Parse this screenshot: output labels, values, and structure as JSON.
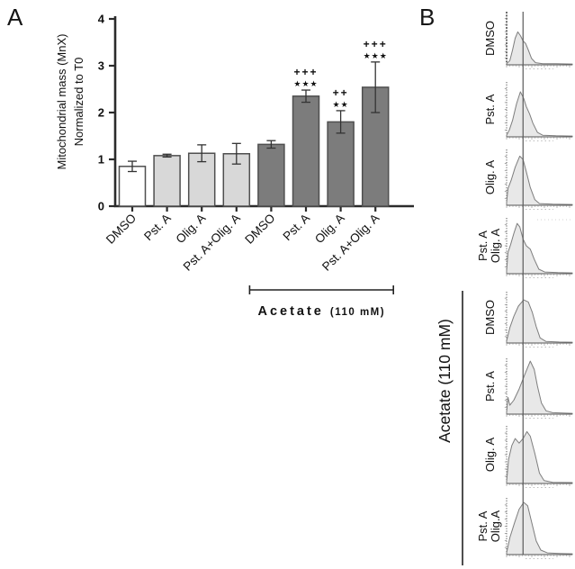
{
  "figure": {
    "panel_a_label": "A",
    "panel_b_label": "B"
  },
  "chart_data": [
    {
      "type": "bar",
      "panel": "A",
      "ylabel": [
        "Mitochondrial mass (MnX)",
        "Normalized to T0"
      ],
      "ylim": [
        0,
        4
      ],
      "yticks": [
        0,
        1,
        2,
        3,
        4
      ],
      "grid": false,
      "legend": false,
      "categories": [
        "DMSO",
        "Pst. A",
        "Olig. A",
        "Pst. A+Olig. A",
        "DMSO",
        "Pst. A",
        "Olig. A",
        "Pst. A+Olig. A"
      ],
      "values": [
        0.85,
        1.08,
        1.13,
        1.12,
        1.32,
        2.35,
        1.8,
        2.54
      ],
      "errors": [
        0.11,
        0.03,
        0.18,
        0.22,
        0.08,
        0.13,
        0.24,
        0.54
      ],
      "bar_colors": [
        "#ffffff",
        "#d8d8d8",
        "#d8d8d8",
        "#d8d8d8",
        "#7c7c7c",
        "#7c7c7c",
        "#7c7c7c",
        "#7c7c7c"
      ],
      "bar_border_color": "#4f4f4f",
      "significance_stars": [
        "",
        "",
        "",
        "",
        "",
        "***",
        "**",
        "***"
      ],
      "significance_plus": [
        "",
        "",
        "",
        "",
        "",
        "+++",
        "++",
        "+++"
      ],
      "group_bracket": {
        "label_main": "Acetate",
        "label_sub": "(110 mM)",
        "from_category_index": 4,
        "to_category_index": 7
      }
    },
    {
      "type": "area",
      "panel": "B",
      "subtype": "flow-cytometry-histograms",
      "fill_color": "#e6e6e6",
      "line_color": "#7e7e7e",
      "ref_line_x_fraction": 0.25,
      "histograms": [
        {
          "label_lines": [
            "DMSO"
          ],
          "points": [
            [
              0,
              0.02
            ],
            [
              0.05,
              0.08
            ],
            [
              0.09,
              0.28
            ],
            [
              0.13,
              0.5
            ],
            [
              0.17,
              0.62
            ],
            [
              0.21,
              0.55
            ],
            [
              0.25,
              0.45
            ],
            [
              0.29,
              0.4
            ],
            [
              0.33,
              0.28
            ],
            [
              0.38,
              0.12
            ],
            [
              0.44,
              0.04
            ],
            [
              0.55,
              0.02
            ],
            [
              0.75,
              0.02
            ],
            [
              1,
              0.015
            ]
          ]
        },
        {
          "label_lines": [
            "Pst. A"
          ],
          "points": [
            [
              0,
              0.03
            ],
            [
              0.04,
              0.12
            ],
            [
              0.09,
              0.3
            ],
            [
              0.15,
              0.6
            ],
            [
              0.21,
              0.82
            ],
            [
              0.26,
              0.7
            ],
            [
              0.3,
              0.55
            ],
            [
              0.35,
              0.42
            ],
            [
              0.4,
              0.25
            ],
            [
              0.47,
              0.08
            ],
            [
              0.55,
              0.03
            ],
            [
              0.75,
              0.02
            ],
            [
              1,
              0.015
            ]
          ]
        },
        {
          "label_lines": [
            "Olig. A"
          ],
          "points": [
            [
              0,
              0.05
            ],
            [
              0.02,
              0.3
            ],
            [
              0.07,
              0.45
            ],
            [
              0.13,
              0.68
            ],
            [
              0.2,
              0.88
            ],
            [
              0.25,
              0.82
            ],
            [
              0.3,
              0.6
            ],
            [
              0.36,
              0.32
            ],
            [
              0.43,
              0.1
            ],
            [
              0.5,
              0.03
            ],
            [
              0.7,
              0.02
            ],
            [
              1,
              0.015
            ]
          ]
        },
        {
          "label_lines": [
            "Pst. A",
            "Olig. A"
          ],
          "points": [
            [
              0,
              0.05
            ],
            [
              0.02,
              0.38
            ],
            [
              0.06,
              0.52
            ],
            [
              0.11,
              0.72
            ],
            [
              0.16,
              0.9
            ],
            [
              0.2,
              0.84
            ],
            [
              0.25,
              0.62
            ],
            [
              0.3,
              0.5
            ],
            [
              0.36,
              0.44
            ],
            [
              0.42,
              0.26
            ],
            [
              0.49,
              0.08
            ],
            [
              0.58,
              0.03
            ],
            [
              0.78,
              0.02
            ],
            [
              1,
              0.015
            ]
          ]
        },
        {
          "label_lines": [
            "DMSO"
          ],
          "points": [
            [
              0,
              0.04
            ],
            [
              0.05,
              0.3
            ],
            [
              0.11,
              0.52
            ],
            [
              0.18,
              0.72
            ],
            [
              0.26,
              0.84
            ],
            [
              0.33,
              0.8
            ],
            [
              0.39,
              0.6
            ],
            [
              0.45,
              0.32
            ],
            [
              0.51,
              0.1
            ],
            [
              0.6,
              0.03
            ],
            [
              0.8,
              0.02
            ],
            [
              1,
              0.015
            ]
          ]
        },
        {
          "label_lines": [
            "Pst. A"
          ],
          "points": [
            [
              0,
              0.03
            ],
            [
              0.02,
              0.3
            ],
            [
              0.05,
              0.16
            ],
            [
              0.11,
              0.25
            ],
            [
              0.19,
              0.45
            ],
            [
              0.28,
              0.72
            ],
            [
              0.36,
              0.95
            ],
            [
              0.42,
              0.8
            ],
            [
              0.47,
              0.5
            ],
            [
              0.53,
              0.2
            ],
            [
              0.6,
              0.06
            ],
            [
              0.7,
              0.025
            ],
            [
              1,
              0.015
            ]
          ]
        },
        {
          "label_lines": [
            "Olig. A"
          ],
          "points": [
            [
              0,
              0.03
            ],
            [
              0.03,
              0.42
            ],
            [
              0.08,
              0.66
            ],
            [
              0.13,
              0.78
            ],
            [
              0.19,
              0.7
            ],
            [
              0.25,
              0.78
            ],
            [
              0.31,
              0.9
            ],
            [
              0.36,
              0.82
            ],
            [
              0.43,
              0.52
            ],
            [
              0.5,
              0.18
            ],
            [
              0.57,
              0.05
            ],
            [
              0.7,
              0.02
            ],
            [
              1,
              0.015
            ]
          ]
        },
        {
          "label_lines": [
            "Pst. A",
            "Olig.A"
          ],
          "points": [
            [
              0,
              0.03
            ],
            [
              0.05,
              0.3
            ],
            [
              0.12,
              0.56
            ],
            [
              0.19,
              0.8
            ],
            [
              0.26,
              0.92
            ],
            [
              0.32,
              0.86
            ],
            [
              0.38,
              0.58
            ],
            [
              0.45,
              0.24
            ],
            [
              0.52,
              0.08
            ],
            [
              0.62,
              0.03
            ],
            [
              0.8,
              0.02
            ],
            [
              1,
              0.015
            ]
          ]
        }
      ],
      "group_bracket": {
        "label": "Acetate (110 mM)",
        "from_index": 4,
        "to_index": 7
      }
    }
  ]
}
